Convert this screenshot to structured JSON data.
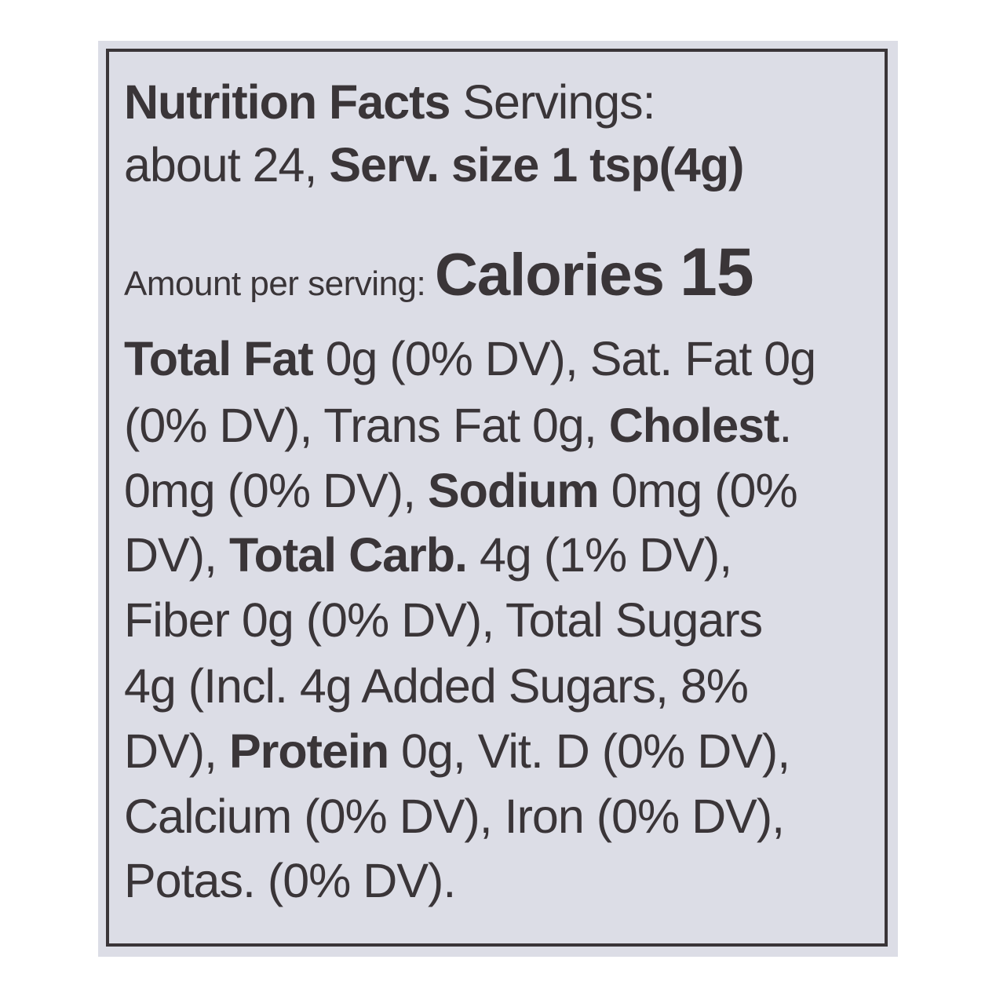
{
  "label": {
    "background": "#dcdde6",
    "text_color": "#3a3538",
    "lines": [
      [
        {
          "text": "Nutrition Facts ",
          "style": "b"
        },
        {
          "text": "Servings:",
          "style": ""
        }
      ],
      [
        {
          "text": "about 24, ",
          "style": ""
        },
        {
          "text": "Serv. size 1 tsp(4g)",
          "style": "b"
        }
      ],
      [
        {
          "text": "Amount per serving: ",
          "style": "small"
        },
        {
          "text": "Calories ",
          "style": "big"
        },
        {
          "text": "15",
          "style": "huge"
        }
      ],
      [
        {
          "text": "Total Fat ",
          "style": "b"
        },
        {
          "text": "0g (0% DV), Sat. Fat 0g",
          "style": ""
        }
      ],
      [
        {
          "text": "(0% DV), Trans Fat 0g, ",
          "style": ""
        },
        {
          "text": "Cholest",
          "style": "b"
        },
        {
          "text": ".",
          "style": ""
        }
      ],
      [
        {
          "text": "0mg (0% DV), ",
          "style": ""
        },
        {
          "text": "Sodium ",
          "style": "b"
        },
        {
          "text": "0mg (0%",
          "style": ""
        }
      ],
      [
        {
          "text": "DV), ",
          "style": ""
        },
        {
          "text": "Total Carb. ",
          "style": "b"
        },
        {
          "text": "4g (1% DV),",
          "style": ""
        }
      ],
      [
        {
          "text": "Fiber 0g (0% DV), Total Sugars",
          "style": ""
        }
      ],
      [
        {
          "text": "4g (Incl. 4g Added Sugars, 8%",
          "style": ""
        }
      ],
      [
        {
          "text": "DV), ",
          "style": ""
        },
        {
          "text": "Protein ",
          "style": "b"
        },
        {
          "text": "0g, Vit. D (0% DV),",
          "style": ""
        }
      ],
      [
        {
          "text": "Calcium (0% DV), Iron (0% DV),",
          "style": ""
        }
      ],
      [
        {
          "text": "Potas. (0% DV).",
          "style": ""
        }
      ]
    ]
  }
}
